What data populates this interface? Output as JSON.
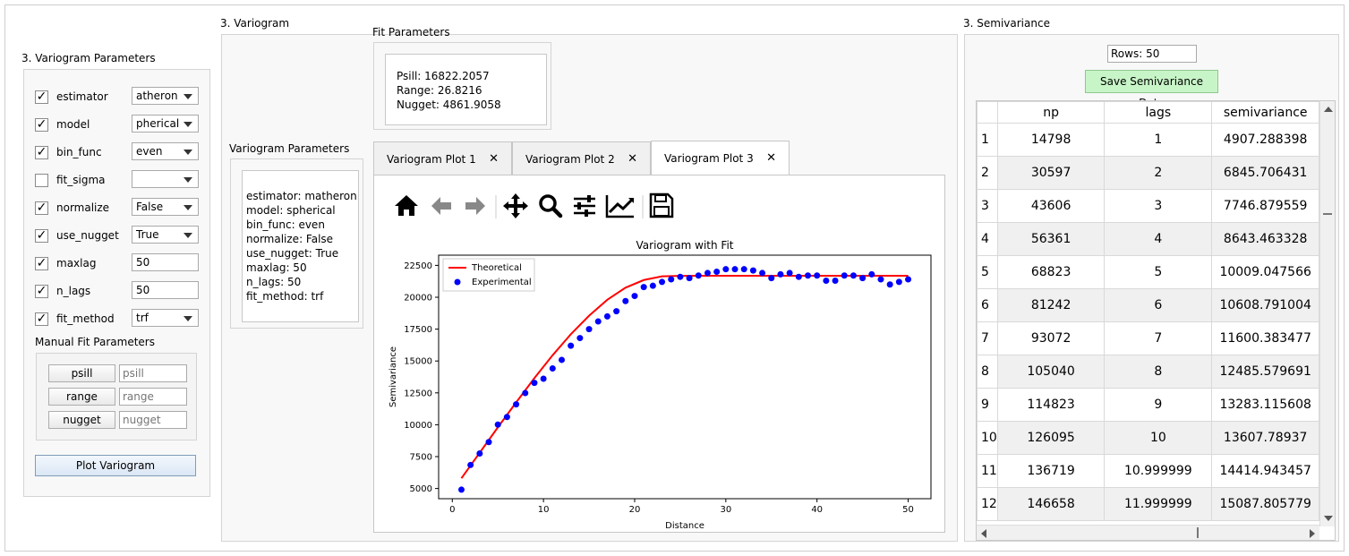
{
  "left_panel": {
    "title": "3. Variogram Parameters",
    "params": [
      {
        "label": "estimator",
        "checked": true,
        "value": "atheron",
        "type": "combo"
      },
      {
        "label": "model",
        "checked": true,
        "value": "pherical",
        "type": "combo"
      },
      {
        "label": "bin_func",
        "checked": true,
        "value": "even",
        "type": "combo"
      },
      {
        "label": "fit_sigma",
        "checked": false,
        "value": "",
        "type": "combo"
      },
      {
        "label": "normalize",
        "checked": true,
        "value": "False",
        "type": "combo"
      },
      {
        "label": "use_nugget",
        "checked": true,
        "value": "True",
        "type": "combo"
      },
      {
        "label": "maxlag",
        "checked": true,
        "value": "50",
        "type": "edit"
      },
      {
        "label": "n_lags",
        "checked": true,
        "value": "50",
        "type": "edit"
      },
      {
        "label": "fit_method",
        "checked": true,
        "value": "trf",
        "type": "combo"
      }
    ],
    "manual_title": "Manual Fit Parameters",
    "manual": [
      {
        "button": "psill",
        "placeholder": "psill"
      },
      {
        "button": "range",
        "placeholder": "range"
      },
      {
        "button": "nugget",
        "placeholder": "nugget"
      }
    ],
    "plot_button": "Plot Variogram",
    "check_mark": "✓"
  },
  "middle": {
    "title": "3. Variogram",
    "fit_params_title": "Fit Parameters",
    "fit_params": [
      "Psill: 16822.2057",
      "Range: 26.8216",
      "Nugget: 4861.9058"
    ],
    "vario_params_title": "Variogram Parameters",
    "vario_params": [
      "estimator: matheron",
      "model: spherical",
      "bin_func: even",
      "normalize: False",
      "use_nugget: True",
      "maxlag: 50",
      "n_lags: 50",
      "fit_method: trf"
    ],
    "tabs": [
      {
        "label": "Variogram Plot 1",
        "active": false
      },
      {
        "label": "Variogram Plot 2",
        "active": false
      },
      {
        "label": "Variogram Plot 3",
        "active": true
      }
    ],
    "toolbar_icons": [
      "home-icon",
      "back-arrow-icon",
      "forward-arrow-icon",
      "pan-icon",
      "zoom-icon",
      "configure-subplots-icon",
      "edit-axis-icon",
      "save-icon"
    ]
  },
  "chart_data": {
    "type": "scatter",
    "title": "Variogram with Fit",
    "xlabel": "Distance",
    "ylabel": "Semivariance",
    "xlim": [
      -1.5,
      52.5
    ],
    "ylim": [
      4200,
      23300
    ],
    "xticks": [
      "0",
      "10",
      "20",
      "30",
      "40",
      "50"
    ],
    "yticks": [
      "5000",
      "7500",
      "10000",
      "12500",
      "15000",
      "17500",
      "20000",
      "22500"
    ],
    "legend_placement": "top-left",
    "grid": false,
    "series": [
      {
        "name": "Theoretical",
        "type": "line",
        "color": "#ff0000",
        "x": [
          1,
          3,
          5,
          7,
          9,
          11,
          13,
          15,
          17,
          19,
          21,
          23,
          25,
          26.8,
          30,
          35,
          40,
          45,
          50
        ],
        "y": [
          5800,
          7800,
          9800,
          11750,
          13650,
          15450,
          17100,
          18550,
          19800,
          20750,
          21350,
          21640,
          21680,
          21684,
          21684,
          21684,
          21684,
          21684,
          21684
        ]
      },
      {
        "name": "Experimental",
        "type": "scatter",
        "color": "#0000ff",
        "x": [
          1,
          2,
          3,
          4,
          5,
          6,
          7,
          8,
          9,
          10,
          11,
          12,
          13,
          14,
          15,
          16,
          17,
          18,
          19,
          20,
          21,
          22,
          23,
          24,
          25,
          26,
          27,
          28,
          29,
          30,
          31,
          32,
          33,
          34,
          35,
          36,
          37,
          38,
          39,
          40,
          41,
          42,
          43,
          44,
          45,
          46,
          47,
          48,
          49,
          50
        ],
        "y": [
          4907,
          6846,
          7747,
          8643,
          10009,
          10609,
          11600,
          12486,
          13283,
          13608,
          14415,
          15088,
          16200,
          16800,
          17500,
          18100,
          18500,
          18900,
          19700,
          20100,
          20800,
          20900,
          21200,
          21400,
          21600,
          21500,
          21700,
          21900,
          22000,
          22200,
          22200,
          22200,
          22100,
          21900,
          21500,
          21800,
          21900,
          21600,
          21700,
          21700,
          21300,
          21300,
          21700,
          21700,
          21500,
          21800,
          21400,
          21000,
          21200,
          21400
        ]
      }
    ]
  },
  "right_panel": {
    "title": "3. Semivariance",
    "rows_label": "Rows: 50",
    "save_button": "Save Semivariance Data",
    "headers": [
      "np",
      "lags",
      "semivariance"
    ],
    "rows": [
      [
        "1",
        "14798",
        "1",
        "4907.288398"
      ],
      [
        "2",
        "30597",
        "2",
        "6845.706431"
      ],
      [
        "3",
        "43606",
        "3",
        "7746.879559"
      ],
      [
        "4",
        "56361",
        "4",
        "8643.463328"
      ],
      [
        "5",
        "68823",
        "5",
        "10009.047566"
      ],
      [
        "6",
        "81242",
        "6",
        "10608.791004"
      ],
      [
        "7",
        "93072",
        "7",
        "11600.383477"
      ],
      [
        "8",
        "105040",
        "8",
        "12485.579691"
      ],
      [
        "9",
        "114823",
        "9",
        "13283.115608"
      ],
      [
        "10",
        "126095",
        "10",
        "13607.78937"
      ],
      [
        "11",
        "136719",
        "10.999999",
        "14414.943457"
      ],
      [
        "12",
        "146658",
        "11.999999",
        "15087.805779"
      ]
    ]
  }
}
